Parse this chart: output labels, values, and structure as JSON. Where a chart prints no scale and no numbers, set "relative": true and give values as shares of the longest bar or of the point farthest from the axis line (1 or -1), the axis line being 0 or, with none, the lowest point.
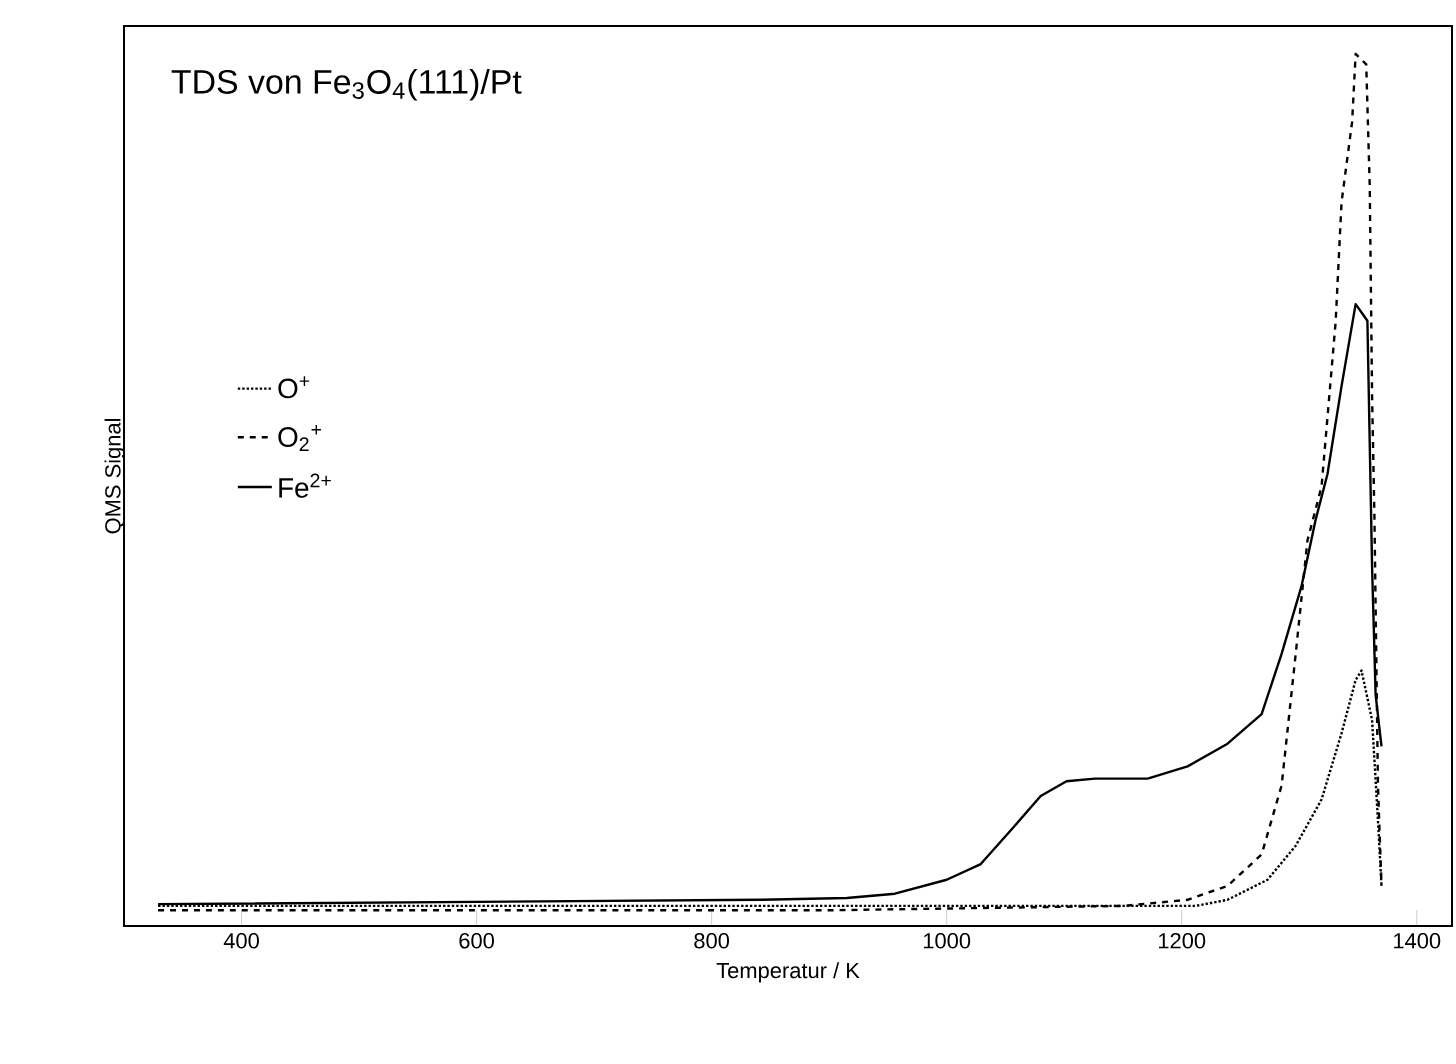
{
  "chart_data": {
    "type": "line",
    "title": "TDS von Fe$_{3}$O$_{4}$(111)/Pt",
    "xlabel": "Temperatur / K",
    "ylabel": "QMS Signal",
    "relative": true,
    "xlim": [
      300,
      1430
    ],
    "xticks": [
      400,
      600,
      800,
      1000,
      1200,
      1400
    ],
    "grid": false,
    "legend": "left",
    "marker": "none",
    "series": [
      {
        "name": "O$^{+}$",
        "color": "#000000",
        "line_style": "dotted",
        "x": [
          329,
          900,
          1212,
          1239,
          1273,
          1297,
          1319,
          1336,
          1348,
          1353,
          1362,
          1367,
          1370
        ],
        "values": [
          0.023,
          0.023,
          0.023,
          0.03,
          0.053,
          0.092,
          0.145,
          0.221,
          0.282,
          0.293,
          0.236,
          0.121,
          0.046
        ]
      },
      {
        "name": "O$_{2}$$^{+}$",
        "color": "#000000",
        "line_style": "dashed",
        "x": [
          329,
          900,
          1150,
          1205,
          1239,
          1268,
          1285,
          1297,
          1307,
          1319,
          1331,
          1336,
          1345,
          1348,
          1357,
          1360,
          1362,
          1364,
          1367,
          1370
        ],
        "values": [
          0.018,
          0.018,
          0.023,
          0.03,
          0.046,
          0.082,
          0.161,
          0.312,
          0.442,
          0.504,
          0.693,
          0.83,
          0.922,
          1,
          0.988,
          0.848,
          0.607,
          0.468,
          0.161,
          0.046
        ]
      },
      {
        "name": "Fe$^{2+}$",
        "color": "#000000",
        "line_style": "solid",
        "x": [
          329,
          841,
          915,
          956,
          1000,
          1029,
          1058,
          1080,
          1102,
          1126,
          1171,
          1205,
          1239,
          1268,
          1285,
          1302,
          1314,
          1324,
          1336,
          1348,
          1358,
          1362,
          1365,
          1370
        ],
        "values": [
          0.025,
          0.03,
          0.032,
          0.037,
          0.053,
          0.071,
          0.115,
          0.149,
          0.166,
          0.169,
          0.169,
          0.183,
          0.209,
          0.243,
          0.312,
          0.39,
          0.466,
          0.518,
          0.619,
          0.713,
          0.694,
          0.411,
          0.265,
          0.206
        ]
      }
    ]
  }
}
